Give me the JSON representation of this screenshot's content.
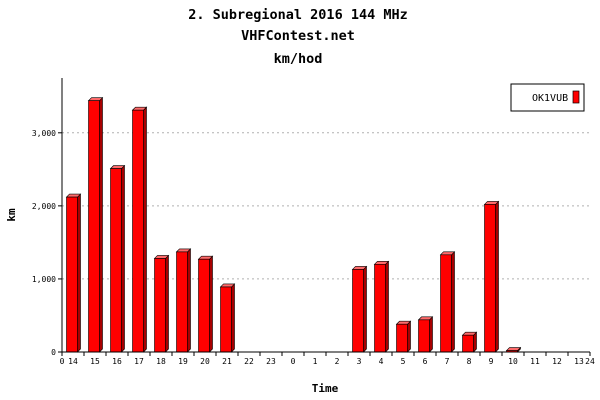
{
  "chart_data": {
    "type": "bar",
    "title": "2. Subregional 2016 144 MHz",
    "subtitle": "VHFContest.net",
    "unit_line": "km/hod",
    "xlabel": "Time",
    "ylabel": "km",
    "x_start_label": "0",
    "x_end_label": "24",
    "categories": [
      "14",
      "15",
      "16",
      "17",
      "18",
      "19",
      "20",
      "21",
      "22",
      "23",
      "0",
      "1",
      "2",
      "3",
      "4",
      "5",
      "6",
      "7",
      "8",
      "9",
      "10",
      "11",
      "12",
      "13"
    ],
    "series": [
      {
        "name": "OK1VUB",
        "values": [
          2120,
          3440,
          2510,
          3310,
          1280,
          1370,
          1270,
          890,
          0,
          0,
          0,
          0,
          0,
          1130,
          1200,
          380,
          440,
          1330,
          230,
          2020,
          20,
          0,
          0,
          0
        ]
      }
    ],
    "ylim": [
      0,
      3750
    ],
    "yticks": [
      0,
      1000,
      2000,
      3000
    ],
    "ytick_labels": [
      "0",
      "1,000",
      "2,000",
      "3,000"
    ],
    "grid": true,
    "legend_position": "top-right",
    "bar_color": "#ff0000",
    "bar_side_color": "#a80000",
    "bar_top_color": "#ff6a6a"
  }
}
